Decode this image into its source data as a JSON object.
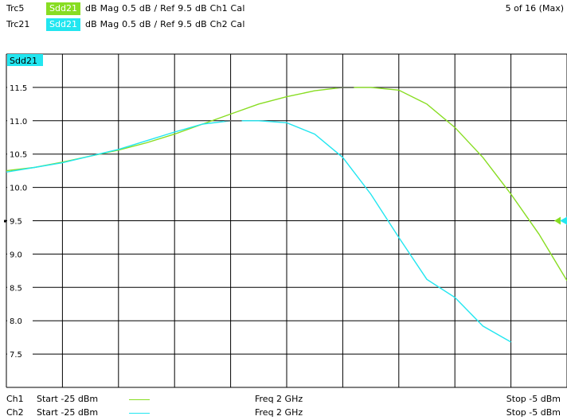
{
  "header": {
    "traces": [
      {
        "name": "Trc5",
        "param": "Sdd21",
        "desc": "dB Mag  0.5 dB /  Ref 9.5 dB   Ch1  Cal",
        "color": "#88dd22"
      },
      {
        "name": "Trc21",
        "param": "Sdd21",
        "desc": "dB Mag  0.5 dB /  Ref 9.5 dB   Ch2  Cal",
        "color": "#22e6f0"
      }
    ],
    "counter": "5 of 16 (Max)"
  },
  "chart_data": {
    "type": "line",
    "title": "Sdd21",
    "ylim": [
      7.0,
      12.0
    ],
    "ytick_labels": [
      "11.5",
      "11.0",
      "10.5",
      "10.0",
      "9.5",
      "9.0",
      "8.5",
      "8.0",
      "7.5"
    ],
    "ytick_values": [
      11.5,
      11.0,
      10.5,
      10.0,
      9.5,
      9.0,
      8.5,
      8.0,
      7.5
    ],
    "xlim": [
      -25,
      -5
    ],
    "x_unit": "dBm",
    "grid": true,
    "reference_level": 9.5,
    "series": [
      {
        "color": "#88dd22",
        "x": [
          -25,
          -24,
          -23,
          -22,
          -21,
          -20,
          -19,
          -18,
          -17,
          -16,
          -15,
          -14,
          -13,
          -12,
          -11,
          -10,
          -9,
          -8,
          -7,
          -6,
          -5
        ],
        "y": [
          10.25,
          10.3,
          10.38,
          10.47,
          10.56,
          10.67,
          10.8,
          10.95,
          11.1,
          11.25,
          11.36,
          11.45,
          11.5,
          11.5,
          11.46,
          11.25,
          10.9,
          10.45,
          9.9,
          9.3,
          8.6
        ]
      },
      {
        "color": "#22e6f0",
        "x": [
          -25,
          -24,
          -23,
          -22,
          -21,
          -20,
          -19,
          -18,
          -17,
          -16,
          -15,
          -14,
          -13,
          -12,
          -11,
          -10,
          -9,
          -8,
          -7
        ],
        "y": [
          10.23,
          10.3,
          10.37,
          10.47,
          10.57,
          10.7,
          10.83,
          10.95,
          11.0,
          11.0,
          10.97,
          10.8,
          10.45,
          9.9,
          9.25,
          8.62,
          8.35,
          7.92,
          7.68
        ]
      }
    ]
  },
  "footer": {
    "channels": [
      {
        "ch": "Ch1",
        "start": "Start  -25 dBm",
        "freq": "Freq  2 GHz",
        "stop": "Stop  -5 dBm",
        "color": "#88dd22"
      },
      {
        "ch": "Ch2",
        "start": "Start  -25 dBm",
        "freq": "Freq  2 GHz",
        "stop": "Stop  -5 dBm",
        "color": "#22e6f0"
      }
    ]
  }
}
